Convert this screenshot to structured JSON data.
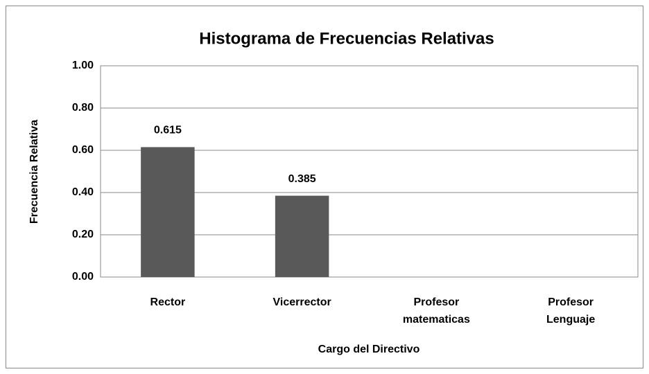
{
  "chart_data": {
    "type": "bar",
    "title": "Histograma de Frecuencias Relativas",
    "x_label": "Cargo del Directivo",
    "y_label": "Frecuencia Relativa",
    "categories": [
      "Rector",
      "Vicerrector",
      "Profesor matematicas",
      "Profesor Lenguaje"
    ],
    "values": [
      0.615,
      0.385,
      0,
      0
    ],
    "value_labels": [
      "0.615",
      "0.385",
      null,
      null
    ],
    "color": "#595959",
    "ylim": [
      0,
      1
    ],
    "yticks": [
      {
        "value": 0,
        "label": "0.00"
      },
      {
        "value": 0.2,
        "label": "0.20"
      },
      {
        "value": 0.4,
        "label": "0.40"
      },
      {
        "value": 0.6,
        "label": "0.60"
      },
      {
        "value": 0.8,
        "label": "0.80"
      },
      {
        "value": 1,
        "label": "1.00"
      }
    ],
    "grid": true
  }
}
